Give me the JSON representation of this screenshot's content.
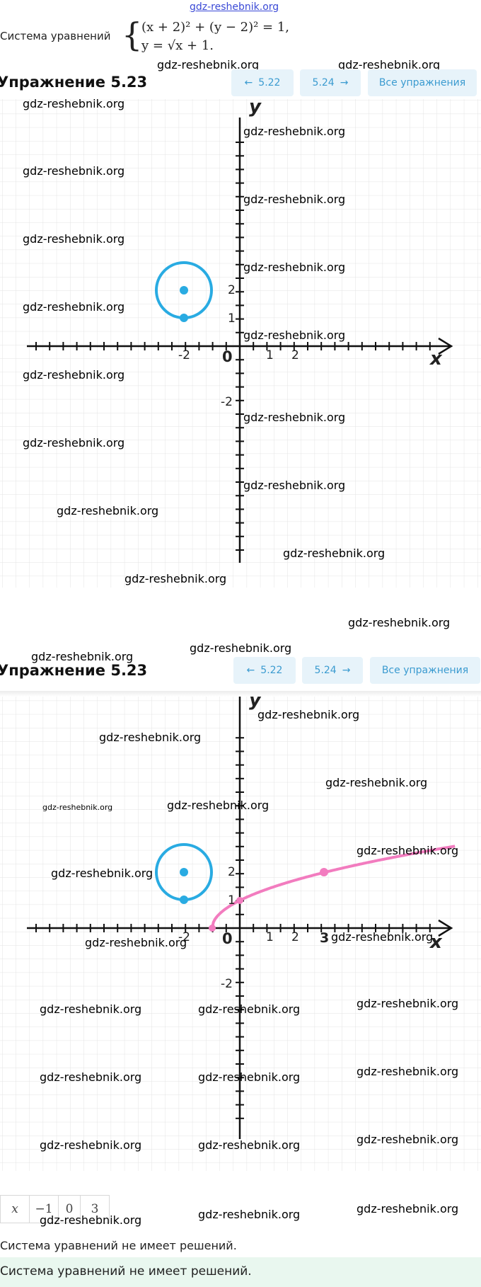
{
  "watermark": "gdz-reshebnik.org",
  "system": {
    "label": "Система уравнений",
    "eq1": "(x + 2)² + (y − 2)² = 1,",
    "eq2": "y = √x + 1."
  },
  "exercise": {
    "title": "Упражнение 5.23",
    "prev_label": "5.22",
    "next_label": "5.24",
    "all_label": "Все упражнения"
  },
  "graph": {
    "axis_x": "x",
    "axis_y": "y",
    "ticks_x_top": [
      "-2",
      "0",
      "1",
      "2"
    ],
    "ticks_y_top": [
      "2",
      "1",
      "-2"
    ],
    "ticks_x_bottom": [
      "-2",
      "0",
      "1",
      "2",
      "3"
    ],
    "ticks_y_bottom": [
      "2",
      "1",
      "-2"
    ]
  },
  "table": {
    "header": "x",
    "values": [
      "−1",
      "0",
      "3"
    ]
  },
  "conclusion": "Система уравнений не имеет решений.",
  "answer": "Система уравнений не имеет решений.",
  "colors": {
    "accent": "#3b9bd0",
    "button_bg": "#e7f3fa",
    "circle": "#29abe2",
    "curve": "#f27cbf",
    "answer_bg": "#e9f7ef"
  }
}
